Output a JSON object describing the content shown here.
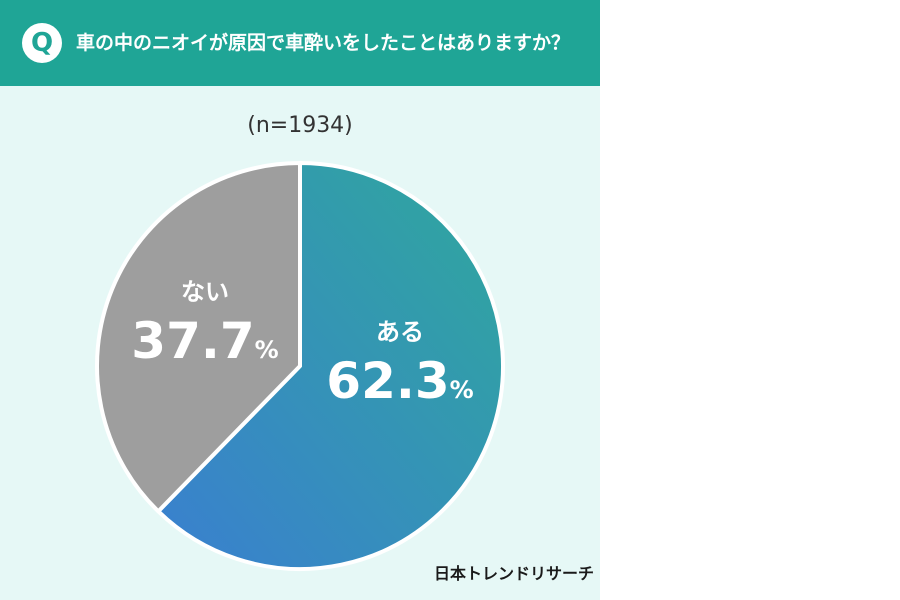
{
  "header": {
    "badge": "Q",
    "question": "車の中のニオイが原因で車酔いをしたことはありますか？"
  },
  "sample_size": "(n=1934)",
  "logo_text": "日本トレンドリサーチ",
  "colors": {
    "header": "#1fa596",
    "background": "#e6f8f6",
    "yes_start": "#2fa89c",
    "yes_end": "#3a7fd0",
    "no": "#9e9e9e"
  },
  "chart_data": {
    "type": "pie",
    "title": "車の中のニオイが原因で車酔いをしたことはありますか？",
    "n": 1934,
    "slices": [
      {
        "label": "ある",
        "value": 62.3,
        "display": "62.3",
        "unit": "%",
        "color": "#2fa89c"
      },
      {
        "label": "ない",
        "value": 37.7,
        "display": "37.7",
        "unit": "%",
        "color": "#9e9e9e"
      }
    ]
  }
}
